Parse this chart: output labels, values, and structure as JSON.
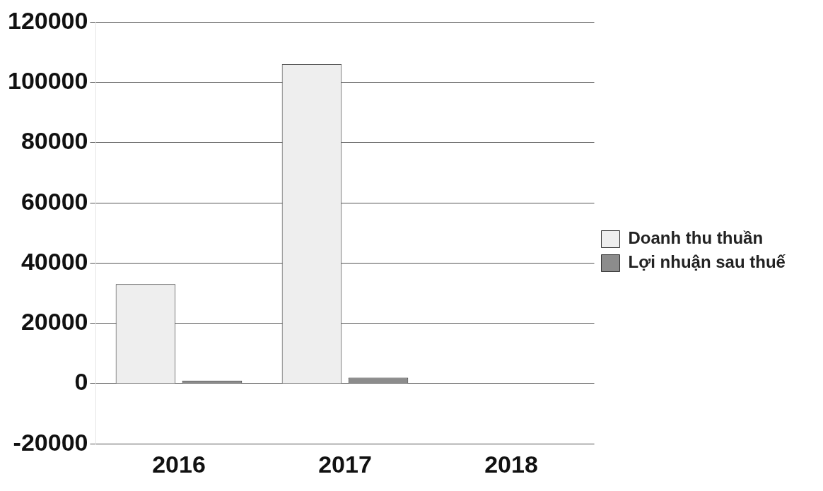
{
  "chart_data": {
    "type": "bar",
    "categories": [
      "2016",
      "2017",
      "2018"
    ],
    "series": [
      {
        "name": "Doanh thu thuần",
        "color": "#eeeeee",
        "values": [
          33000,
          106000,
          0
        ]
      },
      {
        "name": "Lợi nhuận sau thuế",
        "color": "#8c8c8c",
        "values": [
          1000,
          2000,
          0
        ]
      }
    ],
    "ylim": [
      -20000,
      120000
    ],
    "yticks": [
      -20000,
      0,
      20000,
      40000,
      60000,
      80000,
      100000,
      120000
    ],
    "grid": "y",
    "legend": "right"
  }
}
